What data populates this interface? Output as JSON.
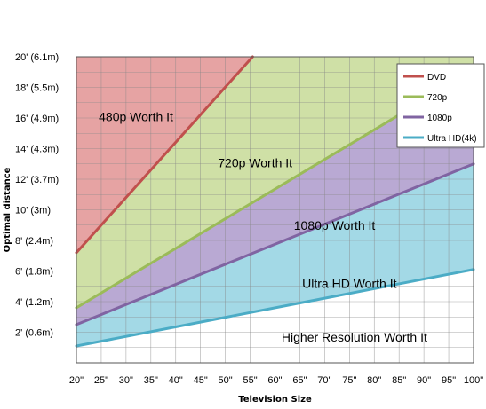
{
  "chart_data": {
    "type": "line",
    "xlabel": "Television Size",
    "ylabel": "Optimal distance",
    "x_ticks": [
      "20\"",
      "25\"",
      "30\"",
      "35\"",
      "40\"",
      "45\"",
      "50\"",
      "55\"",
      "60\"",
      "65\"",
      "70\"",
      "75\"",
      "80\"",
      "85\"",
      "90\"",
      "95\"",
      "100\""
    ],
    "y_ticks": [
      {
        "value": 2,
        "label": "2' (0.6m)"
      },
      {
        "value": 4,
        "label": "4' (1.2m)"
      },
      {
        "value": 6,
        "label": "6' (1.8m)"
      },
      {
        "value": 8,
        "label": "8' (2.4m)"
      },
      {
        "value": 10,
        "label": "10' (3m)"
      },
      {
        "value": 12,
        "label": "12' (3.7m)"
      },
      {
        "value": 14,
        "label": "14' (4.3m)"
      },
      {
        "value": 16,
        "label": "16' (4.9m)"
      },
      {
        "value": 18,
        "label": "18' (5.5m)"
      },
      {
        "value": 20,
        "label": "20' (6.1m)"
      }
    ],
    "xlim": [
      20,
      100
    ],
    "ylim": [
      0,
      20
    ],
    "grid": true,
    "legend_position": "top-right",
    "series": [
      {
        "name": "DVD",
        "color": "#c0504d",
        "x": [
          20,
          55.5
        ],
        "y": [
          7.2,
          20
        ]
      },
      {
        "name": "720p",
        "color": "#9bbb59",
        "x": [
          20,
          85
        ],
        "y": [
          3.6,
          16.2
        ]
      },
      {
        "name": "1080p",
        "color": "#8064a2",
        "x": [
          20,
          100
        ],
        "y": [
          2.5,
          13
        ]
      },
      {
        "name": "Ultra HD(4k)",
        "color": "#4bacc6",
        "x": [
          20,
          100
        ],
        "y": [
          1.1,
          6.1
        ]
      }
    ],
    "regions": [
      {
        "label": "480p Worth It",
        "fill": "#e6a3a3",
        "x": 32,
        "y": 16
      },
      {
        "label": "720p Worth It",
        "fill": "#cfe0a6",
        "x": 56,
        "y": 13
      },
      {
        "label": "1080p Worth It",
        "fill": "#b9a9d3",
        "x": 72,
        "y": 8.9
      },
      {
        "label": "Ultra HD Worth It",
        "fill": "#a3d9e6",
        "x": 75,
        "y": 5.1
      },
      {
        "label": "Higher Resolution Worth It",
        "fill": "#ffffff",
        "x": 76,
        "y": 1.6
      }
    ]
  }
}
